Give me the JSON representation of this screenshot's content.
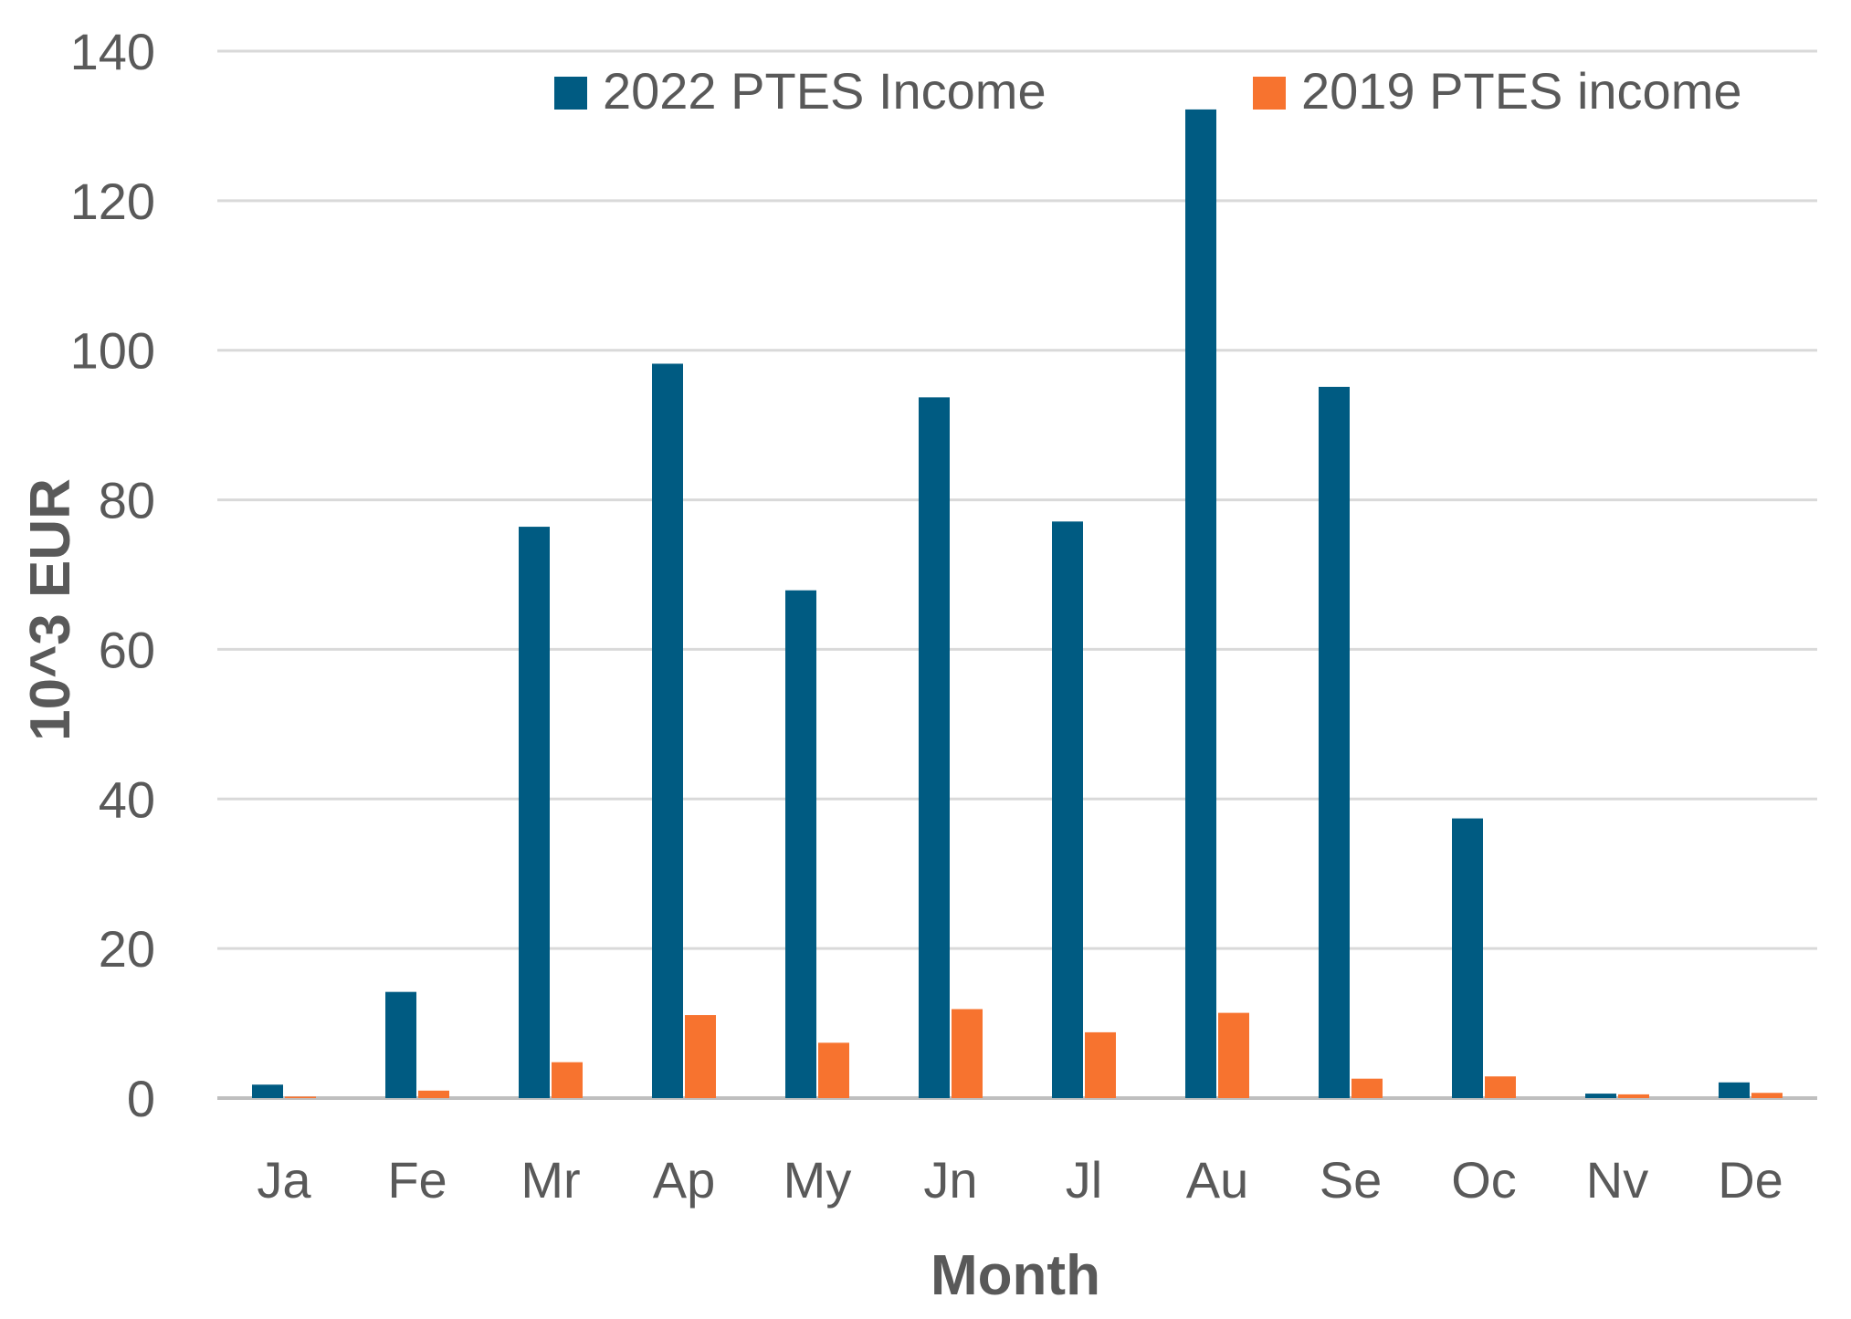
{
  "chart_data": {
    "type": "bar",
    "title": "",
    "xlabel": "Month",
    "ylabel": "10^3 EUR",
    "ylim": [
      0,
      140
    ],
    "yticks": [
      0,
      20,
      40,
      60,
      80,
      100,
      120,
      140
    ],
    "grid": true,
    "legend_position": "top-right",
    "categories": [
      "Ja",
      "Fe",
      "Mr",
      "Ap",
      "My",
      "Jn",
      "Jl",
      "Au",
      "Se",
      "Oc",
      "Nv",
      "De"
    ],
    "series": [
      {
        "name": "2022 PTES Income",
        "color": "#005b82",
        "values": [
          1.8,
          14.2,
          76.4,
          98.2,
          67.9,
          93.7,
          77.1,
          132.2,
          95.1,
          37.4,
          0.6,
          2.1
        ]
      },
      {
        "name": "2019 PTES income",
        "color": "#f7732f",
        "values": [
          0.2,
          1.0,
          4.8,
          11.1,
          7.4,
          11.9,
          8.8,
          11.4,
          2.6,
          2.9,
          0.5,
          0.7
        ]
      }
    ]
  }
}
